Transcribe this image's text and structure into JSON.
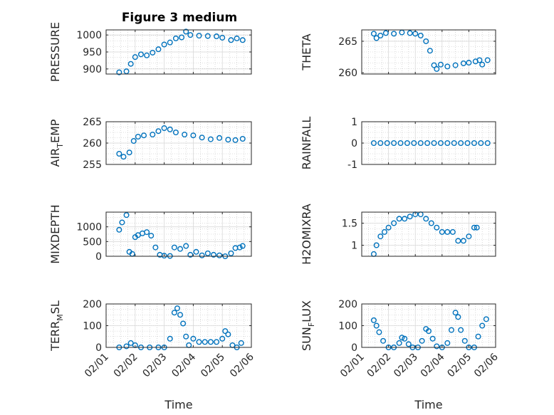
{
  "figure": {
    "title": "Figure 3 medium"
  },
  "colors": {
    "marker": "#0072BD",
    "axis": "#262626",
    "grid": "#BFBFBF"
  },
  "chart_data": [
    {
      "id": "pressure",
      "type": "scatter",
      "title": "Figure 3 medium",
      "ylabel": "PRESSURE",
      "ylabel_main": "PRESSURE",
      "ylabel_sub": "",
      "ylabel_tail": "",
      "ylim": [
        885,
        1015
      ],
      "yticks": [
        900,
        950,
        1000
      ],
      "ytick_labels": [
        "900",
        "950",
        "1000"
      ],
      "xlim": [
        0,
        5
      ],
      "points": [
        [
          0.45,
          890
        ],
        [
          0.7,
          893
        ],
        [
          0.85,
          915
        ],
        [
          1.0,
          935
        ],
        [
          1.2,
          943
        ],
        [
          1.4,
          940
        ],
        [
          1.6,
          948
        ],
        [
          1.8,
          958
        ],
        [
          2.0,
          972
        ],
        [
          2.2,
          978
        ],
        [
          2.4,
          990
        ],
        [
          2.6,
          993
        ],
        [
          2.75,
          1010
        ],
        [
          2.9,
          1000
        ],
        [
          3.2,
          998
        ],
        [
          3.5,
          997
        ],
        [
          3.8,
          996
        ],
        [
          4.0,
          992
        ],
        [
          4.3,
          985
        ],
        [
          4.5,
          990
        ],
        [
          4.7,
          985
        ]
      ]
    },
    {
      "id": "theta",
      "type": "scatter",
      "ylabel": "THETA",
      "ylabel_main": "THETA",
      "ylabel_sub": "",
      "ylabel_tail": "",
      "ylim": [
        259.8,
        266.8
      ],
      "yticks": [
        260,
        265
      ],
      "ytick_labels": [
        "260",
        "265"
      ],
      "xlim": [
        0,
        5
      ],
      "points": [
        [
          0.45,
          266.2
        ],
        [
          0.55,
          265.5
        ],
        [
          0.7,
          265.9
        ],
        [
          0.9,
          266.3
        ],
        [
          1.2,
          266.2
        ],
        [
          1.5,
          266.4
        ],
        [
          1.8,
          266.3
        ],
        [
          2.0,
          266.2
        ],
        [
          2.2,
          265.9
        ],
        [
          2.4,
          265.0
        ],
        [
          2.55,
          263.5
        ],
        [
          2.7,
          261.2
        ],
        [
          2.8,
          260.6
        ],
        [
          2.95,
          261.3
        ],
        [
          3.2,
          261.0
        ],
        [
          3.5,
          261.2
        ],
        [
          3.8,
          261.5
        ],
        [
          4.0,
          261.6
        ],
        [
          4.25,
          261.8
        ],
        [
          4.4,
          262.0
        ],
        [
          4.5,
          261.3
        ],
        [
          4.7,
          262.0
        ]
      ]
    },
    {
      "id": "air_temp",
      "type": "scatter",
      "ylabel": "AIR_TEMP",
      "ylabel_main": "AIR",
      "ylabel_sub": "T",
      "ylabel_tail": "EMP",
      "ylim": [
        255,
        265
      ],
      "yticks": [
        255,
        260,
        265
      ],
      "ytick_labels": [
        "255",
        "260",
        "265"
      ],
      "xlim": [
        0,
        5
      ],
      "points": [
        [
          0.45,
          257.5
        ],
        [
          0.6,
          256.8
        ],
        [
          0.8,
          257.8
        ],
        [
          0.95,
          260.5
        ],
        [
          1.1,
          261.5
        ],
        [
          1.3,
          261.8
        ],
        [
          1.6,
          262.0
        ],
        [
          1.8,
          262.8
        ],
        [
          2.0,
          263.5
        ],
        [
          2.2,
          263.2
        ],
        [
          2.4,
          262.5
        ],
        [
          2.7,
          262.0
        ],
        [
          3.0,
          261.8
        ],
        [
          3.3,
          261.3
        ],
        [
          3.6,
          260.9
        ],
        [
          3.9,
          261.2
        ],
        [
          4.2,
          260.8
        ],
        [
          4.45,
          260.7
        ],
        [
          4.7,
          261.0
        ]
      ]
    },
    {
      "id": "rainfall",
      "type": "scatter",
      "ylabel": "RAINFALL",
      "ylabel_main": "RAINFALL",
      "ylabel_sub": "",
      "ylabel_tail": "",
      "ylim": [
        -1,
        1
      ],
      "yticks": [
        -1,
        0,
        1
      ],
      "ytick_labels": [
        "-1",
        "0",
        "1"
      ],
      "xlim": [
        0,
        5
      ],
      "points": [
        [
          0.45,
          0
        ],
        [
          0.7,
          0
        ],
        [
          0.95,
          0
        ],
        [
          1.2,
          0
        ],
        [
          1.45,
          0
        ],
        [
          1.7,
          0
        ],
        [
          1.95,
          0
        ],
        [
          2.2,
          0
        ],
        [
          2.45,
          0
        ],
        [
          2.7,
          0
        ],
        [
          2.95,
          0
        ],
        [
          3.2,
          0
        ],
        [
          3.45,
          0
        ],
        [
          3.7,
          0
        ],
        [
          3.95,
          0
        ],
        [
          4.2,
          0
        ],
        [
          4.45,
          0
        ],
        [
          4.7,
          0
        ]
      ]
    },
    {
      "id": "mixdepth",
      "type": "scatter",
      "ylabel": "MIXDEPTH",
      "ylabel_main": "MIXDEPTH",
      "ylabel_sub": "",
      "ylabel_tail": "",
      "ylim": [
        0,
        1500
      ],
      "yticks": [
        0,
        500,
        1000
      ],
      "ytick_labels": [
        "0",
        "500",
        "1000"
      ],
      "xlim": [
        0,
        5
      ],
      "points": [
        [
          0.45,
          900
        ],
        [
          0.55,
          1150
        ],
        [
          0.7,
          1400
        ],
        [
          0.8,
          150
        ],
        [
          0.9,
          80
        ],
        [
          1.0,
          650
        ],
        [
          1.1,
          720
        ],
        [
          1.25,
          780
        ],
        [
          1.4,
          820
        ],
        [
          1.55,
          700
        ],
        [
          1.7,
          300
        ],
        [
          1.85,
          50
        ],
        [
          2.0,
          20
        ],
        [
          2.2,
          10
        ],
        [
          2.35,
          300
        ],
        [
          2.55,
          250
        ],
        [
          2.75,
          350
        ],
        [
          2.9,
          50
        ],
        [
          3.1,
          150
        ],
        [
          3.3,
          30
        ],
        [
          3.5,
          100
        ],
        [
          3.7,
          50
        ],
        [
          3.9,
          30
        ],
        [
          4.1,
          0
        ],
        [
          4.3,
          100
        ],
        [
          4.45,
          280
        ],
        [
          4.6,
          300
        ],
        [
          4.7,
          350
        ]
      ]
    },
    {
      "id": "h2omixra",
      "type": "scatter",
      "ylabel": "H2OMIXRA",
      "ylabel_main": "H2OMIXRA",
      "ylabel_sub": "",
      "ylabel_tail": "",
      "ylim": [
        0.75,
        1.75
      ],
      "yticks": [
        1,
        1.5
      ],
      "ytick_labels": [
        "1",
        "1.5"
      ],
      "xlim": [
        0,
        5
      ],
      "points": [
        [
          0.45,
          0.8
        ],
        [
          0.55,
          1.0
        ],
        [
          0.7,
          1.2
        ],
        [
          0.85,
          1.3
        ],
        [
          1.0,
          1.4
        ],
        [
          1.2,
          1.5
        ],
        [
          1.4,
          1.6
        ],
        [
          1.6,
          1.6
        ],
        [
          1.8,
          1.65
        ],
        [
          2.0,
          1.7
        ],
        [
          2.2,
          1.7
        ],
        [
          2.4,
          1.6
        ],
        [
          2.6,
          1.5
        ],
        [
          2.8,
          1.4
        ],
        [
          3.0,
          1.3
        ],
        [
          3.2,
          1.3
        ],
        [
          3.4,
          1.3
        ],
        [
          3.6,
          1.1
        ],
        [
          3.8,
          1.1
        ],
        [
          4.0,
          1.2
        ],
        [
          4.2,
          1.4
        ],
        [
          4.3,
          1.4
        ]
      ]
    },
    {
      "id": "terr_msl",
      "type": "scatter",
      "ylabel": "TERR_MSL",
      "ylabel_main": "TERR",
      "ylabel_sub": "M",
      "ylabel_tail": "SL",
      "ylim": [
        0,
        200
      ],
      "yticks": [
        0,
        100,
        200
      ],
      "ytick_labels": [
        "0",
        "100",
        "200"
      ],
      "xlim": [
        0,
        5
      ],
      "points": [
        [
          0.45,
          0
        ],
        [
          0.7,
          5
        ],
        [
          0.85,
          20
        ],
        [
          1.0,
          10
        ],
        [
          1.2,
          0
        ],
        [
          1.5,
          0
        ],
        [
          1.8,
          0
        ],
        [
          2.0,
          0
        ],
        [
          2.2,
          40
        ],
        [
          2.35,
          160
        ],
        [
          2.45,
          180
        ],
        [
          2.55,
          150
        ],
        [
          2.65,
          110
        ],
        [
          2.75,
          50
        ],
        [
          2.85,
          10
        ],
        [
          3.0,
          40
        ],
        [
          3.2,
          25
        ],
        [
          3.4,
          25
        ],
        [
          3.6,
          25
        ],
        [
          3.8,
          25
        ],
        [
          4.0,
          40
        ],
        [
          4.1,
          75
        ],
        [
          4.2,
          60
        ],
        [
          4.35,
          10
        ],
        [
          4.5,
          0
        ],
        [
          4.65,
          20
        ]
      ]
    },
    {
      "id": "sun_flux",
      "type": "scatter",
      "ylabel": "SUN_FLUX",
      "ylabel_main": "SUN",
      "ylabel_sub": "F",
      "ylabel_tail": "LUX",
      "ylim": [
        0,
        200
      ],
      "yticks": [
        0,
        100,
        200
      ],
      "ytick_labels": [
        "0",
        "100",
        "200"
      ],
      "xlim": [
        0,
        5
      ],
      "points": [
        [
          0.45,
          125
        ],
        [
          0.55,
          100
        ],
        [
          0.65,
          70
        ],
        [
          0.8,
          30
        ],
        [
          1.0,
          0
        ],
        [
          1.2,
          0
        ],
        [
          1.4,
          20
        ],
        [
          1.5,
          45
        ],
        [
          1.6,
          40
        ],
        [
          1.75,
          15
        ],
        [
          1.9,
          0
        ],
        [
          2.1,
          0
        ],
        [
          2.25,
          30
        ],
        [
          2.4,
          85
        ],
        [
          2.5,
          75
        ],
        [
          2.65,
          40
        ],
        [
          2.8,
          5
        ],
        [
          3.0,
          0
        ],
        [
          3.2,
          20
        ],
        [
          3.35,
          80
        ],
        [
          3.5,
          160
        ],
        [
          3.6,
          140
        ],
        [
          3.7,
          80
        ],
        [
          3.85,
          30
        ],
        [
          4.0,
          0
        ],
        [
          4.2,
          0
        ],
        [
          4.35,
          50
        ],
        [
          4.5,
          100
        ],
        [
          4.65,
          130
        ]
      ]
    }
  ],
  "x_axis": {
    "ticks": [
      0,
      1,
      2,
      3,
      4,
      5
    ],
    "tick_labels": [
      "02/01",
      "02/02",
      "02/03",
      "02/04",
      "02/05",
      "02/06"
    ],
    "xlabel": "Time"
  }
}
